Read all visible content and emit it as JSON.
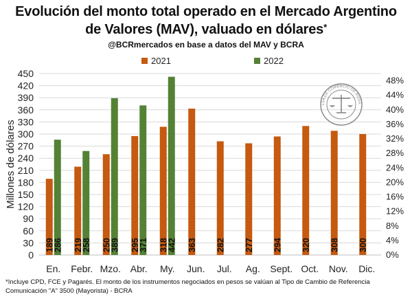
{
  "header": {
    "title_line1": "Evolución del monto total operado en el Mercado Argentino",
    "title_line2": "de Valores (MAV), valuado en dólares",
    "title_star": "*",
    "subtitle": "@BCRmercados en base a datos del MAV y BCRA"
  },
  "footnote": {
    "line1": "*Incluye CPD, FCE y Pagarés. El monto de los instrumentos  negociados en pesos se valúan al Tipo de Cambio de Referencia",
    "line2": "Comunicación \"A\" 3500 (Mayorista) - BCRA"
  },
  "seal": {
    "text": "BOLSA DE COMERCIO DE ROSARIO",
    "icon": "scales-of-justice-seal"
  },
  "colors": {
    "series_2021": "#c55a11",
    "series_2022": "#548235",
    "grid": "#d9d9d9",
    "axis_text": "#222222",
    "bar_label": "#111111"
  },
  "chart_data": {
    "type": "bar",
    "categories": [
      "En.",
      "Febr.",
      "Mzo.",
      "Abr.",
      "My.",
      "Jun.",
      "Jul.",
      "Ag.",
      "Sept.",
      "Oct.",
      "Nov.",
      "Dic."
    ],
    "series": [
      {
        "name": "2021",
        "values": [
          189,
          219,
          250,
          295,
          318,
          363,
          282,
          277,
          294,
          320,
          308,
          300
        ]
      },
      {
        "name": "2022",
        "values": [
          286,
          258,
          389,
          371,
          442,
          null,
          null,
          null,
          null,
          null,
          null,
          null
        ]
      }
    ],
    "ylabel": "Millones de dólares",
    "ylim": [
      0,
      450
    ],
    "yticks": [
      0,
      30,
      60,
      90,
      120,
      150,
      180,
      210,
      240,
      270,
      300,
      330,
      360,
      390,
      420,
      450
    ],
    "y2lim": [
      0,
      0.5
    ],
    "y2ticks": [
      "0%",
      "4%",
      "8%",
      "12%",
      "16%",
      "20%",
      "24%",
      "28%",
      "32%",
      "36%",
      "40%",
      "44%",
      "48%"
    ],
    "grid": "horizontal",
    "legend": "top-center",
    "data_labels": "inside-bar-bottom-vertical"
  }
}
